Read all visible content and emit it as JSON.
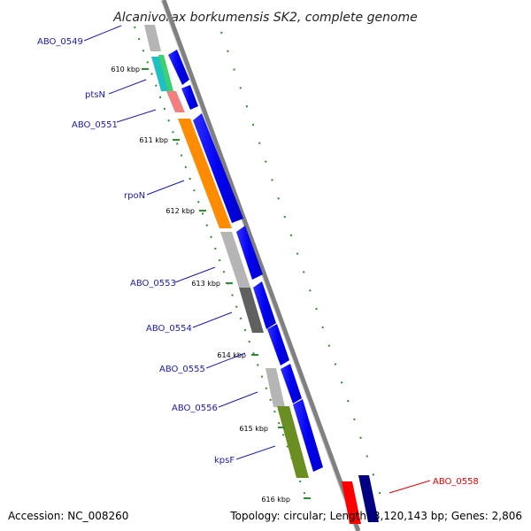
{
  "title": "Alcanivorax borkumensis SK2, complete genome",
  "footer": {
    "accession": "Accession: NC_008260",
    "topology": "Topology: circular; Length: 3,120,143 bp; Genes: 2,806"
  },
  "kbp_labels": [
    "610 kbp",
    "611 kbp",
    "612 kbp",
    "613 kbp",
    "614 kbp",
    "615 kbp",
    "616 kbp"
  ],
  "genes": [
    {
      "name": "ABO_0549",
      "color": "#b5b5b5"
    },
    {
      "name": "ptsN",
      "color": "#20c0c0"
    },
    {
      "name": "ABO_0551",
      "color": "#f08080"
    },
    {
      "name": "rpoN",
      "color": "#ff8c00"
    },
    {
      "name": "ABO_0553",
      "color": "#b5b5b5"
    },
    {
      "name": "ABO_0554",
      "color": "#606060"
    },
    {
      "name": "ABO_0555",
      "color": "#1010e0"
    },
    {
      "name": "ABO_0556",
      "color": "#b5b5b5"
    },
    {
      "name": "kpsF",
      "color": "#6b8e23"
    },
    {
      "name": "ABO_0558",
      "color": "#ff0000"
    }
  ],
  "colors": {
    "cds_arrow": "#0000ff",
    "backbone": "#808080",
    "tick_marks": "#2e8b2e",
    "label_line": "#1a1aa6",
    "highlight_label": "#e00000"
  }
}
